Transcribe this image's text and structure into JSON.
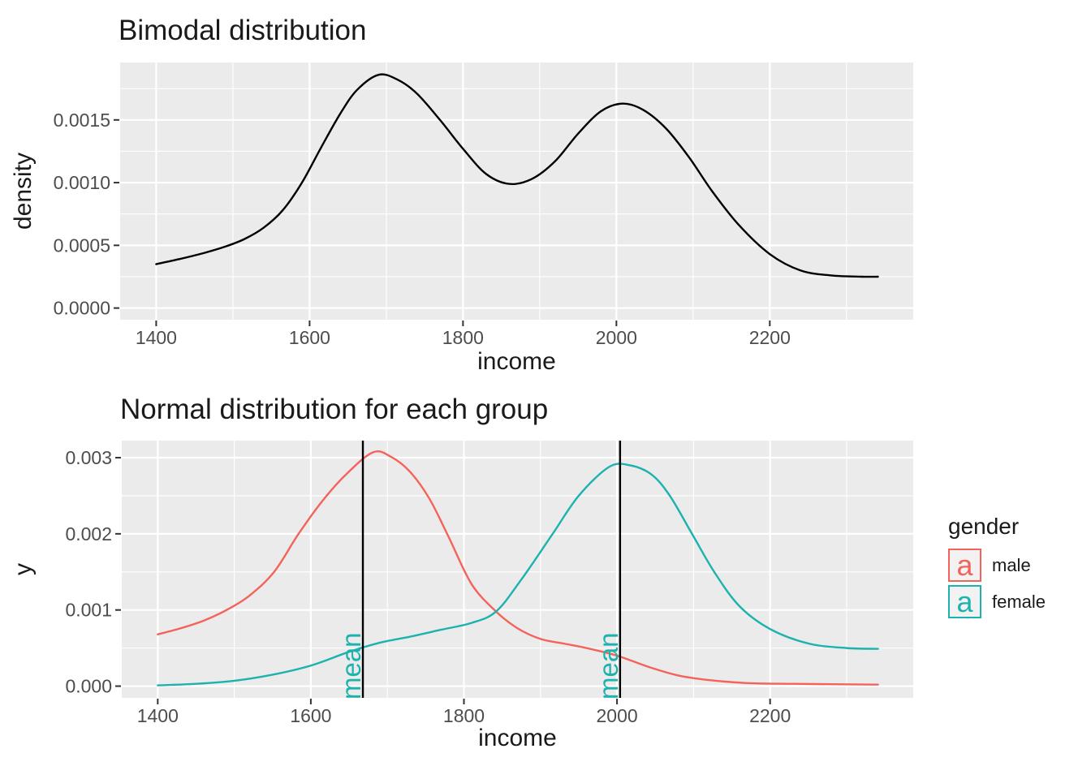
{
  "colors": {
    "panel_bg": "#EBEBEB",
    "grid": "#FFFFFF",
    "tick_text": "#4D4D4D",
    "tick_mark": "#333333",
    "text": "#1A1A1A",
    "black_curve": "#000000",
    "male": "#F4635B",
    "female": "#1CB2AE",
    "legend_key_bg": "#F2F2F2",
    "mean_line": "#000000",
    "mean_label": "#1CB2AE"
  },
  "legend": {
    "title": "gender",
    "items": [
      {
        "glyph": "a",
        "label": "male",
        "color": "#F4635B"
      },
      {
        "glyph": "a",
        "label": "female",
        "color": "#1CB2AE"
      }
    ]
  },
  "chart_data": [
    {
      "type": "line",
      "title": "Bimodal distribution",
      "xlabel": "income",
      "ylabel": "density",
      "xlim": [
        1353,
        2387
      ],
      "ylim": [
        -9.3e-05,
        0.001958
      ],
      "grid": true,
      "x_ticks": {
        "values": [
          1400,
          1600,
          1800,
          2000,
          2200
        ],
        "labels": [
          "1400",
          "1600",
          "1800",
          "2000",
          "2200"
        ],
        "minor": [
          1500,
          1700,
          1900,
          2100,
          2300
        ]
      },
      "y_ticks": {
        "values": [
          0,
          0.0005,
          0.001,
          0.0015
        ],
        "labels": [
          "0.0000",
          "0.0005",
          "0.0010",
          "0.0015"
        ],
        "minor": [
          0.00025,
          0.00075,
          0.00125,
          0.00175
        ]
      },
      "vlines": [],
      "series": [
        {
          "name": "density",
          "color": "#000000",
          "points": [
            [
              1400,
              0.00035
            ],
            [
              1430,
              0.00039
            ],
            [
              1460,
              0.000435
            ],
            [
              1490,
              0.00049
            ],
            [
              1515,
              0.00055
            ],
            [
              1540,
              0.00064
            ],
            [
              1565,
              0.00078
            ],
            [
              1590,
              0.001
            ],
            [
              1615,
              0.00128
            ],
            [
              1640,
              0.00155
            ],
            [
              1662,
              0.00174
            ],
            [
              1690,
              0.00186
            ],
            [
              1715,
              0.00182
            ],
            [
              1740,
              0.00171
            ],
            [
              1770,
              0.0015
            ],
            [
              1800,
              0.00127
            ],
            [
              1830,
              0.00107
            ],
            [
              1860,
              0.00099
            ],
            [
              1890,
              0.00103
            ],
            [
              1920,
              0.00117
            ],
            [
              1950,
              0.00139
            ],
            [
              1980,
              0.00157
            ],
            [
              2008,
              0.00163
            ],
            [
              2035,
              0.00158
            ],
            [
              2065,
              0.00143
            ],
            [
              2095,
              0.0012
            ],
            [
              2125,
              0.00093
            ],
            [
              2160,
              0.00066
            ],
            [
              2200,
              0.00043
            ],
            [
              2240,
              0.0003
            ],
            [
              2280,
              0.00026
            ],
            [
              2320,
              0.00025
            ],
            [
              2341,
              0.00025
            ]
          ]
        }
      ]
    },
    {
      "type": "line",
      "title": "Normal distribution for each group",
      "xlabel": "income",
      "ylabel": "y",
      "xlim": [
        1353,
        2387
      ],
      "ylim": [
        -0.000154,
        0.003224
      ],
      "grid": true,
      "x_ticks": {
        "values": [
          1400,
          1600,
          1800,
          2000,
          2200
        ],
        "labels": [
          "1400",
          "1600",
          "1800",
          "2000",
          "2200"
        ],
        "minor": [
          1500,
          1700,
          1900,
          2100,
          2300
        ]
      },
      "y_ticks": {
        "values": [
          0,
          0.001,
          0.002,
          0.003
        ],
        "labels": [
          "0.000",
          "0.001",
          "0.002",
          "0.003"
        ],
        "minor": [
          0.0005,
          0.0015,
          0.0025
        ]
      },
      "vlines": [
        {
          "x": 1668,
          "label": "mean",
          "line_color": "#000000",
          "label_color": "#1CB2AE"
        },
        {
          "x": 2004,
          "label": "mean",
          "line_color": "#000000",
          "label_color": "#1CB2AE"
        }
      ],
      "series": [
        {
          "name": "male",
          "color": "#F4635B",
          "points": [
            [
              1400,
              0.00068
            ],
            [
              1430,
              0.00076
            ],
            [
              1460,
              0.00086
            ],
            [
              1490,
              0.001
            ],
            [
              1520,
              0.00119
            ],
            [
              1552,
              0.0015
            ],
            [
              1584,
              0.002
            ],
            [
              1615,
              0.00243
            ],
            [
              1645,
              0.00277
            ],
            [
              1681,
              0.00307
            ],
            [
              1705,
              0.00301
            ],
            [
              1730,
              0.00281
            ],
            [
              1755,
              0.00246
            ],
            [
              1780,
              0.00196
            ],
            [
              1810,
              0.00134
            ],
            [
              1842,
              0.00098
            ],
            [
              1870,
              0.00076
            ],
            [
              1900,
              0.00062
            ],
            [
              1930,
              0.00056
            ],
            [
              1960,
              0.0005
            ],
            [
              2000,
              0.0004
            ],
            [
              2042,
              0.00025
            ],
            [
              2080,
              0.00014
            ],
            [
              2120,
              8e-05
            ],
            [
              2170,
              4e-05
            ],
            [
              2230,
              3e-05
            ],
            [
              2341,
              2e-05
            ]
          ]
        },
        {
          "name": "female",
          "color": "#1CB2AE",
          "points": [
            [
              1400,
              1e-05
            ],
            [
              1450,
              3e-05
            ],
            [
              1500,
              7e-05
            ],
            [
              1550,
              0.00015
            ],
            [
              1600,
              0.00027
            ],
            [
              1650,
              0.00045
            ],
            [
              1690,
              0.00057
            ],
            [
              1730,
              0.00065
            ],
            [
              1770,
              0.00074
            ],
            [
              1810,
              0.00083
            ],
            [
              1842,
              0.00098
            ],
            [
              1875,
              0.0014
            ],
            [
              1916,
              0.002
            ],
            [
              1950,
              0.0025
            ],
            [
              1990,
              0.00288
            ],
            [
              2017,
              0.0029
            ],
            [
              2045,
              0.00278
            ],
            [
              2069,
              0.0025
            ],
            [
              2098,
              0.002
            ],
            [
              2127,
              0.0015
            ],
            [
              2160,
              0.00105
            ],
            [
              2200,
              0.00075
            ],
            [
              2250,
              0.00056
            ],
            [
              2300,
              0.0005
            ],
            [
              2341,
              0.00049
            ]
          ]
        }
      ]
    }
  ]
}
